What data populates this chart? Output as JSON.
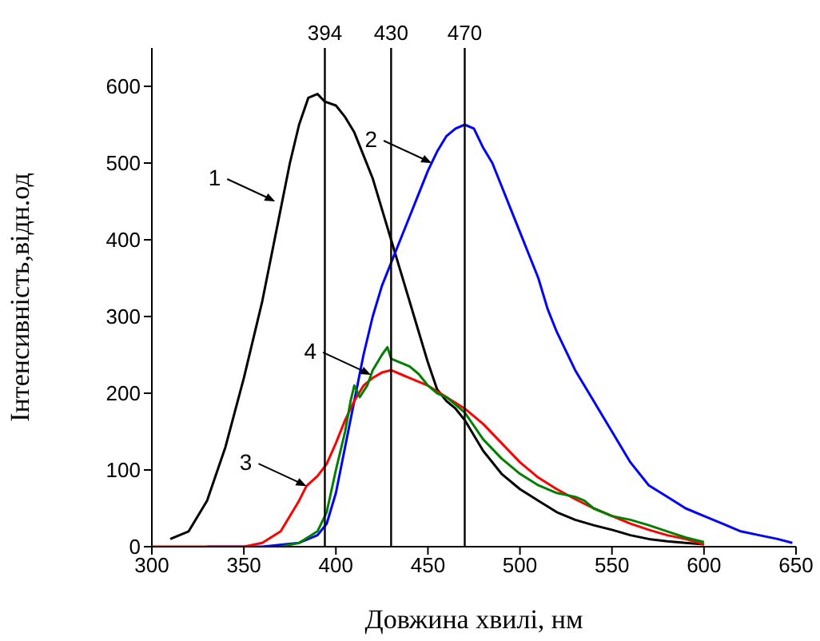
{
  "chart_data": {
    "type": "line",
    "xlabel": "Довжина хвилі, нм",
    "ylabel": "Інтенсивність,відн.од",
    "xlim": [
      300,
      650
    ],
    "xticks": [
      300,
      350,
      400,
      450,
      500,
      550,
      600,
      650
    ],
    "ylim": [
      0,
      650
    ],
    "yticks": [
      0,
      100,
      200,
      300,
      400,
      500,
      600
    ],
    "series": [
      {
        "color": "#000000",
        "x": [
          310,
          320,
          330,
          340,
          350,
          360,
          365,
          370,
          375,
          380,
          385,
          390,
          394,
          400,
          405,
          410,
          415,
          420,
          425,
          430,
          435,
          440,
          445,
          450,
          455,
          460,
          465,
          470,
          480,
          490,
          500,
          510,
          520,
          530,
          540,
          550,
          560,
          570,
          580,
          590,
          600
        ],
        "values": [
          10,
          20,
          60,
          130,
          220,
          320,
          380,
          440,
          500,
          550,
          585,
          590,
          580,
          575,
          560,
          540,
          510,
          480,
          440,
          400,
          360,
          320,
          280,
          240,
          205,
          190,
          180,
          165,
          125,
          95,
          75,
          60,
          45,
          35,
          28,
          22,
          15,
          10,
          7,
          5,
          3
        ]
      },
      {
        "color": "#0000ff",
        "x": [
          330,
          360,
          380,
          390,
          395,
          400,
          405,
          410,
          415,
          420,
          425,
          430,
          435,
          440,
          445,
          450,
          455,
          460,
          465,
          470,
          475,
          480,
          485,
          490,
          495,
          500,
          505,
          510,
          515,
          520,
          530,
          540,
          550,
          560,
          570,
          580,
          590,
          600,
          610,
          620,
          630,
          640,
          648
        ],
        "values": [
          0,
          0,
          5,
          15,
          30,
          70,
          130,
          190,
          250,
          300,
          340,
          370,
          400,
          430,
          460,
          490,
          515,
          535,
          545,
          550,
          545,
          520,
          500,
          470,
          440,
          410,
          380,
          350,
          310,
          280,
          230,
          190,
          150,
          110,
          80,
          65,
          50,
          40,
          30,
          20,
          15,
          10,
          5
        ]
      },
      {
        "color": "#ff0000",
        "x": [
          300,
          350,
          360,
          370,
          380,
          384,
          390,
          395,
          400,
          405,
          410,
          415,
          420,
          425,
          430,
          435,
          440,
          450,
          460,
          470,
          480,
          490,
          500,
          510,
          520,
          530,
          540,
          550,
          560,
          570,
          580,
          590,
          600
        ],
        "values": [
          0,
          0,
          5,
          20,
          60,
          79,
          92,
          108,
          135,
          165,
          190,
          210,
          220,
          227,
          230,
          225,
          220,
          210,
          195,
          180,
          160,
          135,
          110,
          90,
          75,
          62,
          50,
          40,
          30,
          22,
          15,
          10,
          3
        ]
      },
      {
        "color": "#008000",
        "x": [
          370,
          380,
          390,
          395,
          400,
          405,
          408,
          410,
          413,
          417,
          420,
          425,
          428,
          430,
          435,
          440,
          445,
          450,
          455,
          460,
          465,
          470,
          480,
          490,
          500,
          510,
          520,
          530,
          535,
          540,
          550,
          560,
          570,
          580,
          590,
          600
        ],
        "values": [
          0,
          5,
          20,
          45,
          100,
          150,
          190,
          210,
          195,
          210,
          230,
          250,
          260,
          245,
          240,
          235,
          225,
          210,
          200,
          195,
          185,
          175,
          140,
          115,
          95,
          80,
          70,
          65,
          60,
          50,
          40,
          35,
          28,
          20,
          12,
          6
        ]
      }
    ],
    "ref_lines": [
      {
        "axis": "x",
        "value": 394,
        "label": "394"
      },
      {
        "axis": "x",
        "value": 470,
        "label": "470"
      },
      {
        "axis": "x",
        "value": 430,
        "label": "430"
      }
    ],
    "annotations": [
      {
        "text": "1",
        "x": 367,
        "y": 450
      },
      {
        "text": "2",
        "x": 452,
        "y": 500
      },
      {
        "text": "3",
        "x": 384,
        "y": 79
      },
      {
        "text": "4",
        "x": 419,
        "y": 224
      }
    ]
  }
}
